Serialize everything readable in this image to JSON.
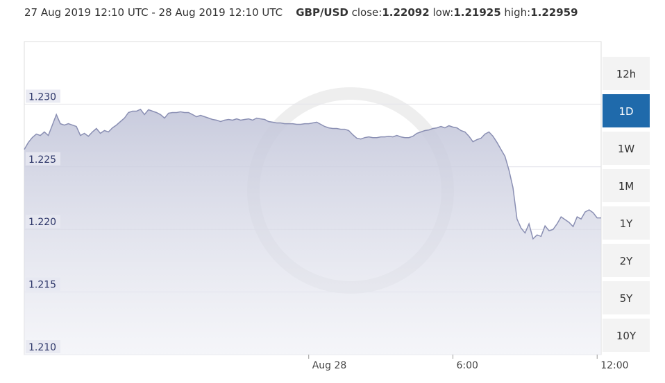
{
  "header": {
    "range": "27 Aug 2019 12:10 UTC - 28 Aug 2019 12:10 UTC",
    "pair": "GBP/USD",
    "close_label": "close:",
    "close": "1.22092",
    "low_label": "low:",
    "low": "1.21925",
    "high_label": "high:",
    "high": "1.22959"
  },
  "chart_data": {
    "type": "area",
    "color": "#8a8fb3",
    "fill": "#c9cbdd",
    "grid": true,
    "ylim": [
      1.21,
      1.235
    ],
    "yticks": [
      {
        "value": 1.21,
        "label": "1.210"
      },
      1.215,
      {
        "value": 1.22,
        "label": "1.220"
      },
      1.225,
      {
        "value": 1.23,
        "label": "1.230"
      }
    ],
    "categories": [
      null,
      null,
      null,
      null,
      null,
      null,
      null,
      null,
      null,
      null,
      null,
      null,
      null,
      null,
      null,
      null,
      null,
      null,
      null,
      null,
      null,
      null,
      null,
      null,
      null,
      null,
      null,
      null,
      null,
      null,
      null,
      null,
      null,
      null,
      null,
      null,
      null,
      null,
      null,
      null,
      null,
      null,
      null,
      null,
      null,
      null,
      null,
      null,
      null,
      null,
      null,
      null,
      null,
      null,
      null,
      null,
      null,
      null,
      null,
      null,
      null,
      null,
      null,
      null,
      null,
      null,
      null,
      null,
      null,
      null,
      null,
      "Aug 28",
      null,
      null,
      null,
      null,
      null,
      null,
      null,
      null,
      null,
      null,
      null,
      null,
      null,
      null,
      null,
      null,
      null,
      null,
      null,
      null,
      null,
      null,
      null,
      null,
      null,
      null,
      null,
      null,
      null,
      null,
      null,
      null,
      null,
      null,
      null,
      "6:00",
      null,
      null,
      null,
      null,
      null,
      null,
      null,
      null,
      null,
      null,
      null,
      null,
      null,
      null,
      null,
      null,
      null,
      null,
      null,
      null,
      null,
      null,
      null,
      null,
      null,
      null,
      null,
      null,
      null,
      null,
      null,
      null,
      null,
      null,
      null,
      "12:00",
      null
    ],
    "values": [
      1.22639,
      1.22694,
      1.22733,
      1.22761,
      1.2275,
      1.22778,
      1.2275,
      1.22833,
      1.22917,
      1.22844,
      1.22833,
      1.22844,
      1.22833,
      1.22822,
      1.2275,
      1.22767,
      1.22744,
      1.22778,
      1.22806,
      1.22767,
      1.22789,
      1.22778,
      1.22811,
      1.22833,
      1.22861,
      1.22889,
      1.22933,
      1.22944,
      1.22944,
      1.22959,
      1.22917,
      1.22956,
      1.22944,
      1.22933,
      1.22917,
      1.22889,
      1.22928,
      1.22933,
      1.22933,
      1.22939,
      1.22933,
      1.22933,
      1.22917,
      1.229,
      1.22911,
      1.229,
      1.22889,
      1.22878,
      1.22872,
      1.22861,
      1.22872,
      1.22878,
      1.22872,
      1.22883,
      1.22872,
      1.22878,
      1.22883,
      1.22872,
      1.22889,
      1.22883,
      1.22878,
      1.22861,
      1.22856,
      1.2285,
      1.2285,
      1.22844,
      1.22844,
      1.22844,
      1.22839,
      1.22839,
      1.22844,
      1.22844,
      1.2285,
      1.22856,
      1.22839,
      1.22822,
      1.22811,
      1.22806,
      1.22806,
      1.228,
      1.228,
      1.22789,
      1.22756,
      1.22728,
      1.22722,
      1.22733,
      1.22739,
      1.22733,
      1.22733,
      1.22739,
      1.22739,
      1.22744,
      1.22739,
      1.2275,
      1.22739,
      1.22733,
      1.22733,
      1.22744,
      1.22767,
      1.22778,
      1.22789,
      1.22794,
      1.22806,
      1.22811,
      1.22822,
      1.22811,
      1.22828,
      1.22817,
      1.22811,
      1.22789,
      1.22778,
      1.22744,
      1.227,
      1.22717,
      1.22728,
      1.22761,
      1.22778,
      1.22744,
      1.22694,
      1.22639,
      1.22583,
      1.22472,
      1.22333,
      1.22083,
      1.22011,
      1.21972,
      1.22044,
      1.21925,
      1.21956,
      1.21944,
      1.22028,
      1.21989,
      1.22,
      1.22044,
      1.221,
      1.22078,
      1.22056,
      1.22022,
      1.221,
      1.22083,
      1.22139,
      1.22156,
      1.22133,
      1.22092,
      1.22092
    ]
  },
  "range_buttons": [
    {
      "label": "12h",
      "selected": false
    },
    {
      "label": "1D",
      "selected": true
    },
    {
      "label": "1W",
      "selected": false
    },
    {
      "label": "1M",
      "selected": false
    },
    {
      "label": "1Y",
      "selected": false
    },
    {
      "label": "2Y",
      "selected": false
    },
    {
      "label": "5Y",
      "selected": false
    },
    {
      "label": "10Y",
      "selected": false
    }
  ]
}
